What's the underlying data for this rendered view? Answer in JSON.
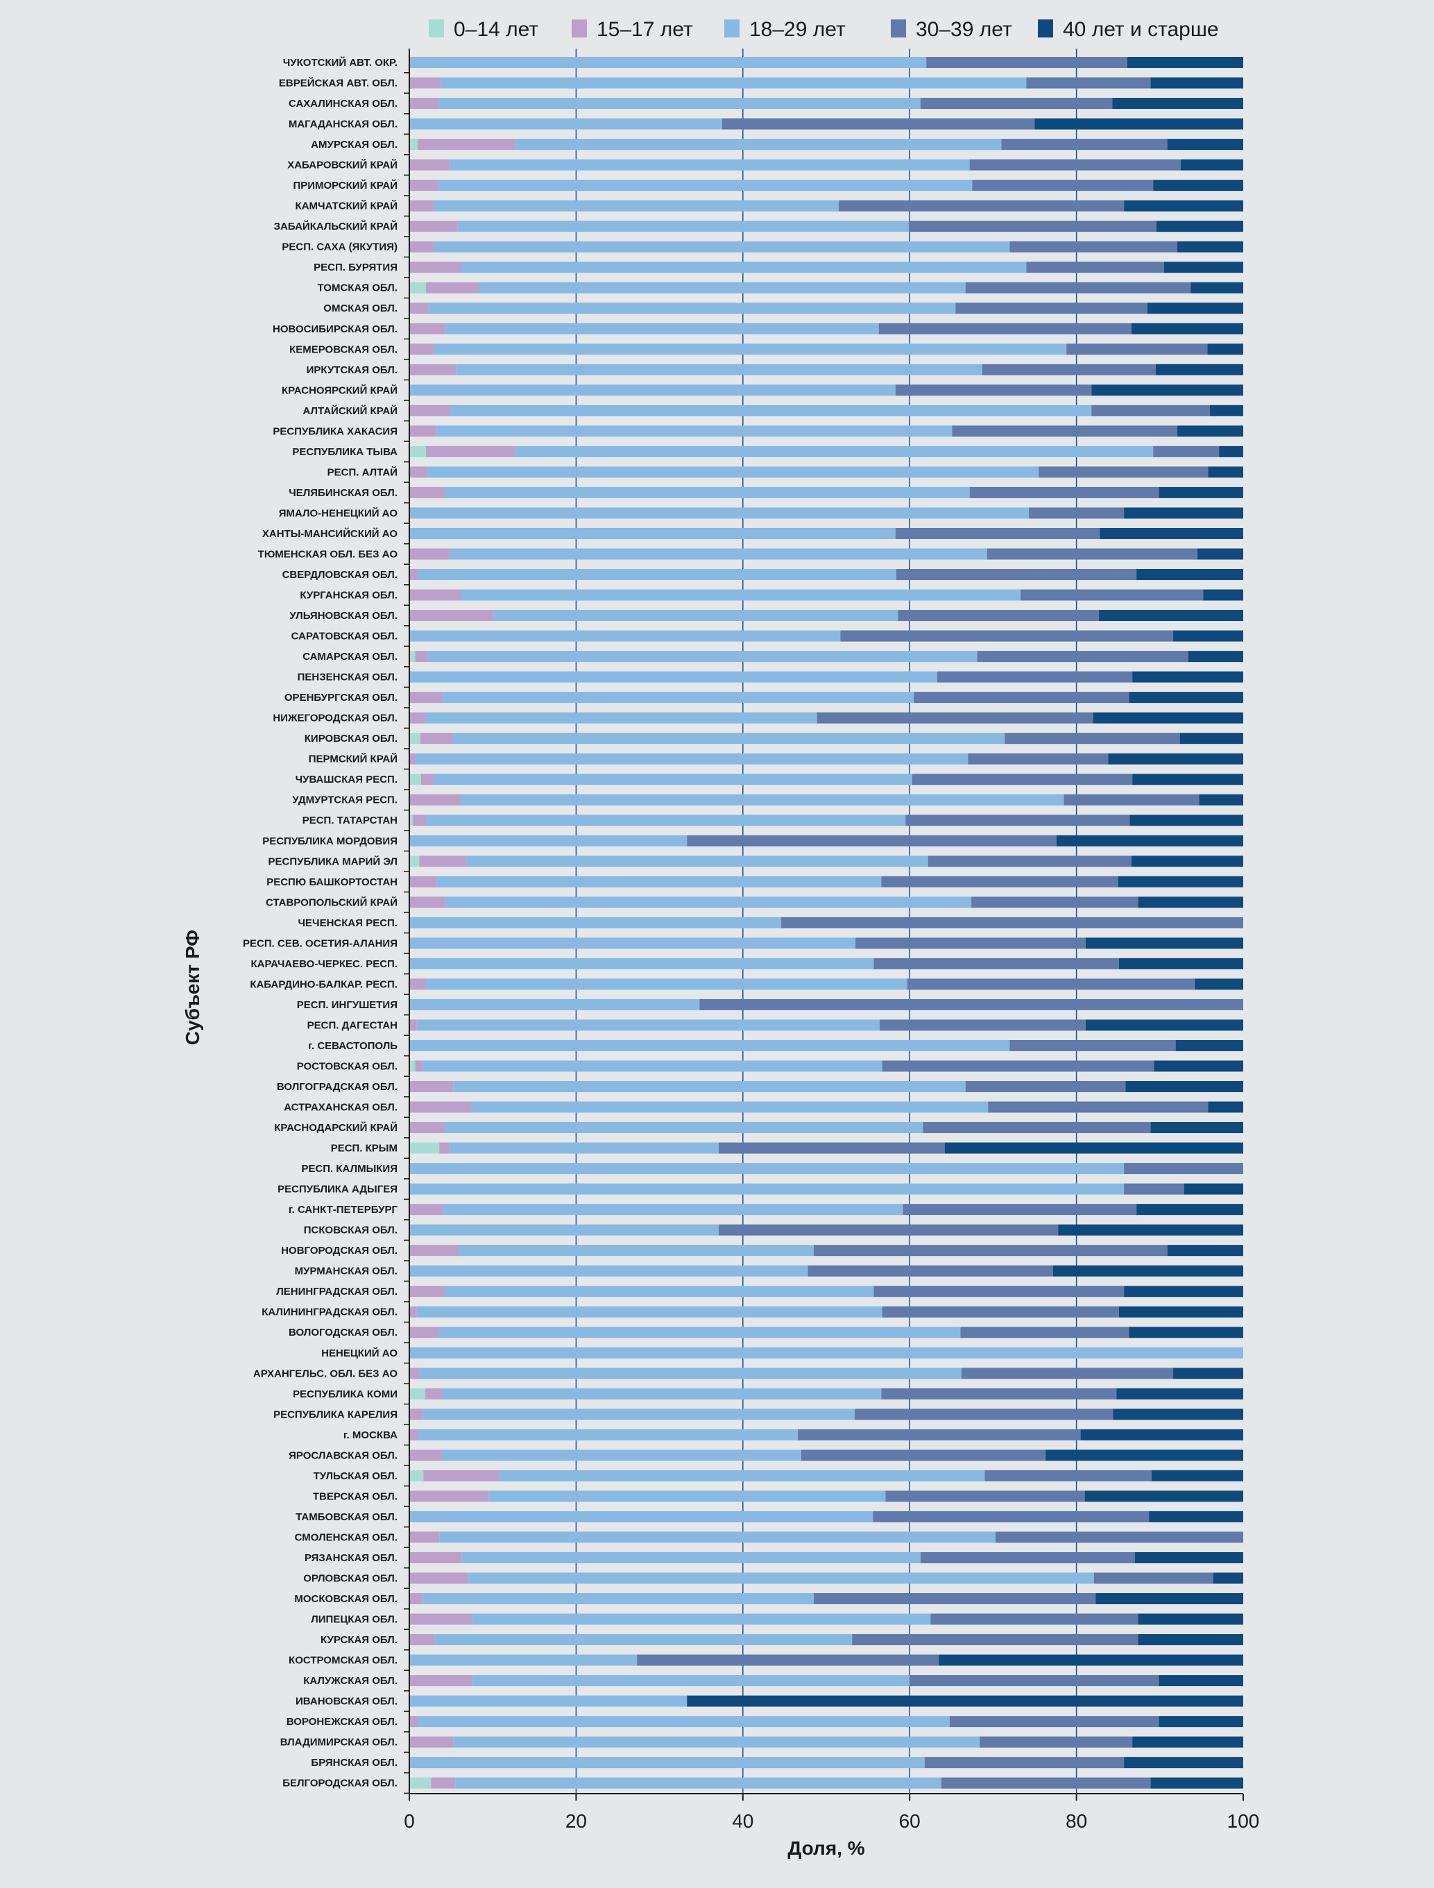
{
  "chart_data": {
    "type": "bar",
    "orientation": "horizontal",
    "stacked": true,
    "title": "",
    "xlabel": "Доля, %",
    "ylabel": "Субъект РФ",
    "xlim": [
      0,
      100
    ],
    "xticks": [
      0,
      20,
      40,
      60,
      80,
      100
    ],
    "grid": true,
    "legend_position": "top",
    "colors": [
      "#a6ddd3",
      "#bd9fcb",
      "#88b9e3",
      "#5f7aab",
      "#0f4a7e"
    ],
    "series_names": [
      "0–14 лет",
      "15–17 лет",
      "18–29 лет",
      "30–39 лет",
      "40 лет и старше"
    ],
    "categories": [
      "ЧУКОТСКИЙ АВТ. ОКР.",
      "ЕВРЕЙСКАЯ АВТ. ОБЛ.",
      "САХАЛИНСКАЯ ОБЛ.",
      "МАГАДАНСКАЯ ОБЛ.",
      "АМУРСКАЯ ОБЛ.",
      "ХАБАРОВСКИЙ КРАЙ",
      "ПРИМОРСКИЙ КРАЙ",
      "КАМЧАТСКИЙ КРАЙ",
      "ЗАБАЙКАЛЬСКИЙ КРАЙ",
      "РЕСП. САХА (ЯКУТИЯ)",
      "РЕСП. БУРЯТИЯ",
      "ТОМСКАЯ ОБЛ.",
      "ОМСКАЯ ОБЛ.",
      "НОВОСИБИРСКАЯ ОБЛ.",
      "КЕМЕРОВСКАЯ ОБЛ.",
      "ИРКУТСКАЯ ОБЛ.",
      "КРАСНОЯРСКИЙ КРАЙ",
      "АЛТАЙСКИЙ КРАЙ",
      "РЕСПУБЛИКА ХАКАСИЯ",
      "РЕСПУБЛИКА ТЫВА",
      "РЕСП. АЛТАЙ",
      "ЧЕЛЯБИНСКАЯ ОБЛ.",
      "ЯМАЛО-НЕНЕЦКИЙ АО",
      "ХАНТЫ-МАНСИЙСКИЙ АО",
      "ТЮМЕНСКАЯ ОБЛ. БЕЗ АО",
      "СВЕРДЛОВСКАЯ ОБЛ.",
      "КУРГАНСКАЯ ОБЛ.",
      "УЛЬЯНОВСКАЯ ОБЛ.",
      "САРАТОВСКАЯ ОБЛ.",
      "САМАРСКАЯ ОБЛ.",
      "ПЕНЗЕНСКАЯ ОБЛ.",
      "ОРЕНБУРГСКАЯ ОБЛ.",
      "НИЖЕГОРОДСКАЯ ОБЛ.",
      "КИРОВСКАЯ ОБЛ.",
      "ПЕРМСКИЙ КРАЙ",
      "ЧУВАШСКАЯ РЕСП.",
      "УДМУРТСКАЯ РЕСП.",
      "РЕСП. ТАТАРСТАН",
      "РЕСПУБЛИКА МОРДОВИЯ",
      "РЕСПУБЛИКА МАРИЙ ЭЛ",
      "РЕСПЮ БАШКОРТОСТАН",
      "СТАВРОПОЛЬСКИЙ КРАЙ",
      "ЧЕЧЕНСКАЯ РЕСП.",
      "РЕСП. СЕВ. ОСЕТИЯ-АЛАНИЯ",
      "КАРАЧАЕВО-ЧЕРКЕС. РЕСП.",
      "КАБАРДИНО-БАЛКАР. РЕСП.",
      "РЕСП. ИНГУШЕТИЯ",
      "РЕСП. ДАГЕСТАН",
      "г. СЕВАСТОПОЛЬ",
      "РОСТОВСКАЯ ОБЛ.",
      "ВОЛГОГРАДСКАЯ ОБЛ.",
      "АСТРАХАНСКАЯ ОБЛ.",
      "КРАСНОДАРСКИЙ КРАЙ",
      "РЕСП. КРЫМ",
      "РЕСП. КАЛМЫКИЯ",
      "РЕСПУБЛИКА АДЫГЕЯ",
      "г. САНКТ-ПЕТЕРБУРГ",
      "ПСКОВСКАЯ ОБЛ.",
      "НОВГОРОДСКАЯ ОБЛ.",
      "МУРМАНСКАЯ ОБЛ.",
      "ЛЕНИНГРАДСКАЯ ОБЛ.",
      "КАЛИНИНГРАДСКАЯ ОБЛ.",
      "ВОЛОГОДСКАЯ ОБЛ.",
      "НЕНЕЦКИЙ АО",
      "АРХАНГЕЛЬС. ОБЛ. БЕЗ АО",
      "РЕСПУБЛИКА КОМИ",
      "РЕСПУБЛИКА КАРЕЛИЯ",
      "г. МОСКВА",
      "ЯРОСЛАВСКАЯ ОБЛ.",
      "ТУЛЬСКАЯ ОБЛ.",
      "ТВЕРСКАЯ ОБЛ.",
      "ТАМБОВСКАЯ ОБЛ.",
      "СМОЛЕНСКАЯ ОБЛ.",
      "РЯЗАНСКАЯ ОБЛ.",
      "ОРЛОВСКАЯ ОБЛ.",
      "МОСКОВСКАЯ ОБЛ.",
      "ЛИПЕЦКАЯ ОБЛ.",
      "КУРСКАЯ ОБЛ.",
      "КОСТРОМСКАЯ ОБЛ.",
      "КАЛУЖСКАЯ ОБЛ.",
      "ИВАНОВСКАЯ ОБЛ.",
      "ВОРОНЕЖСКАЯ ОБЛ.",
      "ВЛАДИМИРСКАЯ ОБЛ.",
      "БРЯНСКАЯ ОБЛ.",
      "БЕЛГОРОДСКАЯ ОБЛ."
    ],
    "cumulative_ends_note": "each row: cumulative % at end of 0–14, 15–17, 18–29, 30–39; remainder to 100 is 40+",
    "cumulative": [
      [
        0,
        0,
        62.0,
        86.1
      ],
      [
        0,
        3.8,
        74.0,
        88.9
      ],
      [
        0,
        3.5,
        61.3,
        84.3
      ],
      [
        0,
        0,
        37.5,
        75.0
      ],
      [
        1.0,
        12.7,
        71.0,
        90.9
      ],
      [
        0,
        4.8,
        67.2,
        92.5
      ],
      [
        0,
        3.5,
        67.5,
        89.2
      ],
      [
        0,
        2.9,
        51.5,
        85.7
      ],
      [
        0,
        5.8,
        59.9,
        89.6
      ],
      [
        0,
        2.9,
        72.0,
        92.1
      ],
      [
        0,
        6.2,
        74.0,
        90.5
      ],
      [
        2.0,
        8.4,
        66.7,
        93.7
      ],
      [
        0,
        2.3,
        65.5,
        88.5
      ],
      [
        0,
        4.3,
        56.3,
        86.6
      ],
      [
        0,
        2.9,
        78.8,
        95.7
      ],
      [
        0,
        5.6,
        68.7,
        89.5
      ],
      [
        0,
        0,
        58.3,
        81.8
      ],
      [
        0,
        4.9,
        81.8,
        96.0
      ],
      [
        0,
        3.3,
        65.1,
        92.1
      ],
      [
        2.0,
        12.7,
        89.2,
        97.1
      ],
      [
        0,
        2.2,
        75.5,
        95.8
      ],
      [
        0,
        4.3,
        67.2,
        89.9
      ],
      [
        0,
        0,
        74.3,
        85.7
      ],
      [
        0,
        0,
        58.3,
        82.8
      ],
      [
        0,
        4.8,
        69.3,
        94.5
      ],
      [
        0,
        1.0,
        58.4,
        87.2
      ],
      [
        0,
        6.2,
        73.3,
        95.2
      ],
      [
        0,
        10.1,
        58.6,
        82.7
      ],
      [
        0,
        0,
        51.7,
        91.6
      ],
      [
        0.7,
        2.2,
        68.1,
        93.4
      ],
      [
        0,
        0,
        63.3,
        86.7
      ],
      [
        0,
        4.0,
        60.5,
        86.3
      ],
      [
        0,
        1.9,
        48.9,
        82.0
      ],
      [
        1.3,
        5.2,
        71.4,
        92.4
      ],
      [
        0,
        0.7,
        67.0,
        83.8
      ],
      [
        1.4,
        2.9,
        60.3,
        86.7
      ],
      [
        0,
        6.2,
        78.5,
        94.7
      ],
      [
        0.4,
        2.0,
        59.5,
        86.4
      ],
      [
        0,
        0,
        33.3,
        77.6
      ],
      [
        1.2,
        6.8,
        62.2,
        86.6
      ],
      [
        0,
        3.3,
        56.6,
        85.0
      ],
      [
        0,
        4.3,
        67.4,
        87.4
      ],
      [
        0,
        0,
        44.6,
        100
      ],
      [
        0,
        0,
        53.5,
        81.1
      ],
      [
        0,
        0,
        55.7,
        85.1
      ],
      [
        0,
        2.0,
        59.7,
        94.2
      ],
      [
        0,
        0,
        34.8,
        100
      ],
      [
        0,
        0.9,
        56.4,
        81.1
      ],
      [
        0,
        0,
        72.0,
        91.9
      ],
      [
        0.7,
        1.6,
        56.7,
        89.3
      ],
      [
        0,
        5.3,
        66.7,
        85.9
      ],
      [
        0,
        7.4,
        69.4,
        95.8
      ],
      [
        0,
        4.3,
        61.6,
        88.9
      ],
      [
        3.6,
        4.8,
        37.1,
        64.2
      ],
      [
        0,
        0,
        85.7,
        100
      ],
      [
        0,
        0,
        85.7,
        92.9
      ],
      [
        0,
        4.0,
        59.2,
        87.2
      ],
      [
        0,
        0,
        37.1,
        77.8
      ],
      [
        0,
        5.9,
        48.5,
        90.9
      ],
      [
        0,
        0,
        47.8,
        77.2
      ],
      [
        0,
        4.3,
        55.7,
        85.7
      ],
      [
        0,
        0.9,
        56.7,
        85.1
      ],
      [
        0,
        3.5,
        66.1,
        86.3
      ],
      [
        0,
        0,
        100,
        100
      ],
      [
        0,
        1.2,
        66.2,
        91.6
      ],
      [
        1.9,
        3.9,
        56.6,
        84.8
      ],
      [
        0,
        1.6,
        53.4,
        84.4
      ],
      [
        0,
        1.0,
        46.6,
        80.5
      ],
      [
        0,
        3.9,
        47.0,
        76.3
      ],
      [
        1.7,
        10.8,
        69.0,
        89.0
      ],
      [
        0,
        9.5,
        57.1,
        81.0
      ],
      [
        0,
        0,
        55.6,
        88.7
      ],
      [
        0,
        3.6,
        70.3,
        100
      ],
      [
        0,
        6.3,
        61.3,
        87.0
      ],
      [
        0,
        7.1,
        82.1,
        96.4
      ],
      [
        0,
        1.6,
        48.5,
        82.3
      ],
      [
        0,
        7.5,
        62.5,
        87.4
      ],
      [
        0,
        3.0,
        53.1,
        87.4
      ],
      [
        0,
        0,
        27.3,
        63.5
      ],
      [
        0,
        7.5,
        60.0,
        89.9
      ],
      [
        0,
        0,
        33.3,
        33.3
      ],
      [
        0,
        1.0,
        64.8,
        89.9
      ],
      [
        0,
        5.3,
        68.4,
        86.7
      ],
      [
        0,
        0,
        61.8,
        85.7
      ],
      [
        2.6,
        5.5,
        63.8,
        88.9
      ]
    ]
  }
}
